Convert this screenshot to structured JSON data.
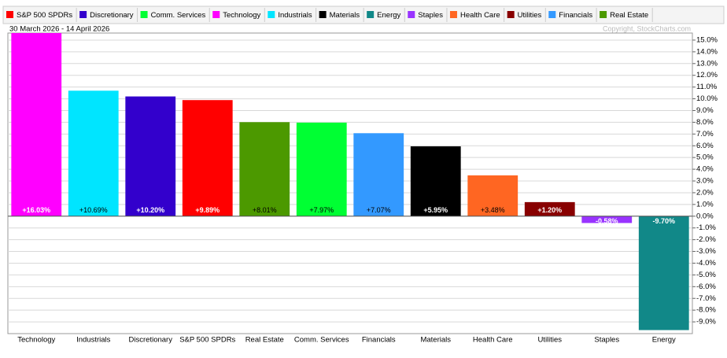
{
  "chart_data": {
    "type": "bar",
    "subtitle": "30 March 2026 - 14 April 2026",
    "annotation": "Copyright, StockCharts.com",
    "legend": [
      {
        "name": "S&P 500 SPDRs",
        "color": "#ff0000"
      },
      {
        "name": "Discretionary",
        "color": "#3300cc"
      },
      {
        "name": "Comm. Services",
        "color": "#00ff33"
      },
      {
        "name": "Technology",
        "color": "#ff00ff"
      },
      {
        "name": "Industrials",
        "color": "#00e5ff"
      },
      {
        "name": "Materials",
        "color": "#000000"
      },
      {
        "name": "Energy",
        "color": "#118888"
      },
      {
        "name": "Staples",
        "color": "#9933ff"
      },
      {
        "name": "Health Care",
        "color": "#ff6622"
      },
      {
        "name": "Utilities",
        "color": "#880000"
      },
      {
        "name": "Financials",
        "color": "#3399ff"
      },
      {
        "name": "Real Estate",
        "color": "#4c9900"
      }
    ],
    "categories": [
      "Technology",
      "Industrials",
      "Discretionary",
      "S&P 500 SPDRs",
      "Real Estate",
      "Comm. Services",
      "Financials",
      "Materials",
      "Health Care",
      "Utilities",
      "Staples",
      "Energy"
    ],
    "values": [
      16.03,
      10.69,
      10.2,
      9.89,
      8.01,
      7.97,
      7.07,
      5.95,
      3.48,
      1.2,
      -0.58,
      -9.7
    ],
    "value_labels": [
      "+16.03%",
      "+10.69%",
      "+10.20%",
      "+9.89%",
      "+8.01%",
      "+7.97%",
      "+7.07%",
      "+5.95%",
      "+3.48%",
      "+1.20%",
      "-0.58%",
      "-9.70%"
    ],
    "ylim": [
      -10,
      15.6
    ],
    "yticks": [
      {
        "value": -9,
        "label": "-9.0%"
      },
      {
        "value": -8,
        "label": "-8.0%"
      },
      {
        "value": -7,
        "label": "-7.0%"
      },
      {
        "value": -6,
        "label": "-6.0%"
      },
      {
        "value": -5,
        "label": "-5.0%"
      },
      {
        "value": -4,
        "label": "-4.0%"
      },
      {
        "value": -3,
        "label": "-3.0%"
      },
      {
        "value": -2,
        "label": "-2.0%"
      },
      {
        "value": -1,
        "label": "-1.0%"
      },
      {
        "value": 0,
        "label": "0.0%"
      },
      {
        "value": 1,
        "label": "1.0%"
      },
      {
        "value": 2,
        "label": "2.0%"
      },
      {
        "value": 3,
        "label": "3.0%"
      },
      {
        "value": 4,
        "label": "4.0%"
      },
      {
        "value": 5,
        "label": "5.0%"
      },
      {
        "value": 6,
        "label": "6.0%"
      },
      {
        "value": 7,
        "label": "7.0%"
      },
      {
        "value": 8,
        "label": "8.0%"
      },
      {
        "value": 9,
        "label": "9.0%"
      },
      {
        "value": 10,
        "label": "10.0%"
      },
      {
        "value": 11,
        "label": "11.0%"
      },
      {
        "value": 12,
        "label": "12.0%"
      },
      {
        "value": 13,
        "label": "13.0%"
      },
      {
        "value": 14,
        "label": "14.0%"
      },
      {
        "value": 15,
        "label": "15.0%"
      }
    ],
    "grid": true
  }
}
